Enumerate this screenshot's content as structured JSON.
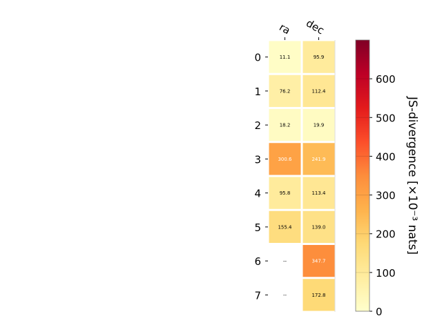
{
  "chart_data": {
    "type": "heatmap",
    "title": "",
    "columns": [
      "ra",
      "dec"
    ],
    "rows": [
      "0",
      "1",
      "2",
      "3",
      "4",
      "5",
      "6",
      "7"
    ],
    "values": [
      [
        11.1,
        95.9
      ],
      [
        76.2,
        112.4
      ],
      [
        18.2,
        19.9
      ],
      [
        300.6,
        241.9
      ],
      [
        95.8,
        113.4
      ],
      [
        155.4,
        139.0
      ],
      [
        null,
        347.7
      ],
      [
        null,
        172.8
      ]
    ],
    "cell_labels": [
      [
        "11.1",
        "95.9"
      ],
      [
        "76.2",
        "112.4"
      ],
      [
        "18.2",
        "19.9"
      ],
      [
        "300.6",
        "241.9"
      ],
      [
        "95.8",
        "113.4"
      ],
      [
        "155.4",
        "139.0"
      ],
      [
        "--",
        "347.7"
      ],
      [
        "--",
        "172.8"
      ]
    ],
    "colorbar": {
      "label": "JS-divergence [×10⁻³ nats]",
      "range": [
        0,
        700
      ],
      "ticks": [
        "0",
        "100",
        "200",
        "300",
        "400",
        "500",
        "600"
      ],
      "colormap": "YlOrRd"
    }
  }
}
